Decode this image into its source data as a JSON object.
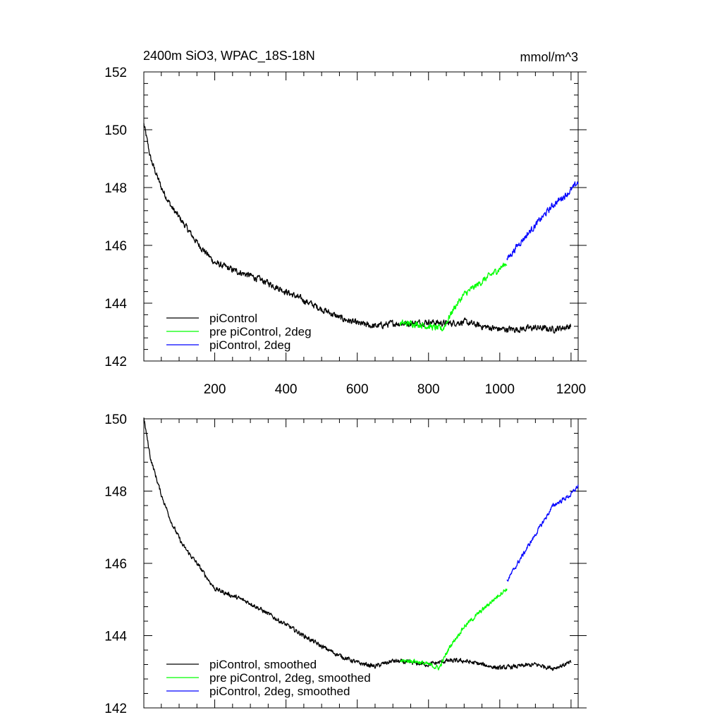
{
  "colors": {
    "piControl": "#000000",
    "pre_piControl_2deg": "#00ff00",
    "piControl_2deg": "#0000ff"
  },
  "chart_data": [
    {
      "type": "line",
      "title": "2400m SiO3, WPAC_18S-18N",
      "units": "mmol/m^3",
      "xlim": [
        1,
        1220
      ],
      "ylim": [
        142,
        152
      ],
      "xticks": [
        200,
        400,
        600,
        800,
        1000,
        1200
      ],
      "xtick_labels": [
        "200",
        "400",
        "600",
        "800",
        "1000",
        "1200"
      ],
      "yticks": [
        142,
        144,
        146,
        148,
        150,
        152
      ],
      "ytick_labels": [
        "142",
        "144",
        "146",
        "148",
        "150",
        "152"
      ],
      "legend_position": "bottom-left",
      "series": [
        {
          "name": "piControl",
          "color": "#000000",
          "x_start": 1,
          "x_end": 1200,
          "anchors_x": [
            1,
            20,
            50,
            80,
            110,
            150,
            200,
            250,
            300,
            350,
            400,
            450,
            500,
            550,
            600,
            650,
            700,
            750,
            800,
            850,
            900,
            950,
            1000,
            1050,
            1100,
            1150,
            1200
          ],
          "anchors_y": [
            150.2,
            149.0,
            148.0,
            147.3,
            146.8,
            146.1,
            145.4,
            145.15,
            144.95,
            144.7,
            144.4,
            144.1,
            143.8,
            143.5,
            143.3,
            143.2,
            143.3,
            143.3,
            143.35,
            143.3,
            143.35,
            143.2,
            143.1,
            143.1,
            143.15,
            143.1,
            143.2
          ],
          "noise": 0.09
        },
        {
          "name": "pre piControl, 2deg",
          "color": "#00ff00",
          "x_start": 720,
          "x_end": 1020,
          "anchors_x": [
            720,
            760,
            800,
            840,
            870,
            900,
            950,
            1000,
            1020
          ],
          "anchors_y": [
            143.3,
            143.3,
            143.2,
            143.1,
            143.8,
            144.3,
            144.75,
            145.2,
            145.4
          ],
          "noise": 0.09
        },
        {
          "name": "piControl, 2deg",
          "color": "#0000ff",
          "x_start": 1020,
          "x_end": 1220,
          "anchors_x": [
            1020,
            1050,
            1100,
            1150,
            1200,
            1220
          ],
          "anchors_y": [
            145.5,
            146.0,
            146.7,
            147.4,
            147.9,
            148.2
          ],
          "noise": 0.09
        }
      ]
    },
    {
      "type": "line",
      "xlim": [
        1,
        1220
      ],
      "ylim": [
        142,
        150
      ],
      "xticks": [
        200,
        400,
        600,
        800,
        1000,
        1200
      ],
      "yticks": [
        142,
        144,
        146,
        148,
        150
      ],
      "ytick_labels": [
        "142",
        "144",
        "146",
        "148",
        "150"
      ],
      "legend_position": "bottom-left",
      "series": [
        {
          "name": "piControl, smoothed",
          "color": "#000000",
          "x_start": 1,
          "x_end": 1200,
          "anchors_x": [
            1,
            20,
            50,
            80,
            110,
            150,
            200,
            250,
            300,
            350,
            400,
            450,
            500,
            550,
            600,
            650,
            700,
            750,
            800,
            850,
            900,
            950,
            1000,
            1050,
            1100,
            1150,
            1200
          ],
          "anchors_y": [
            150.0,
            148.9,
            147.9,
            147.1,
            146.5,
            146.0,
            145.3,
            145.1,
            144.9,
            144.6,
            144.3,
            144.0,
            143.7,
            143.45,
            143.25,
            143.15,
            143.3,
            143.25,
            143.2,
            143.3,
            143.3,
            143.2,
            143.1,
            143.15,
            143.2,
            143.1,
            143.25
          ],
          "noise": 0.05
        },
        {
          "name": "pre piControl, 2deg, smoothed",
          "color": "#00ff00",
          "x_start": 720,
          "x_end": 1020,
          "anchors_x": [
            720,
            760,
            800,
            830,
            860,
            900,
            950,
            1000,
            1020
          ],
          "anchors_y": [
            143.3,
            143.3,
            143.2,
            143.1,
            143.7,
            144.25,
            144.7,
            145.15,
            145.3
          ],
          "noise": 0.05
        },
        {
          "name": "piControl, 2deg, smoothed",
          "color": "#0000ff",
          "x_start": 1020,
          "x_end": 1220,
          "anchors_x": [
            1020,
            1050,
            1100,
            1150,
            1200,
            1220
          ],
          "anchors_y": [
            145.5,
            146.0,
            146.8,
            147.6,
            147.9,
            148.15
          ],
          "noise": 0.05
        }
      ]
    }
  ]
}
